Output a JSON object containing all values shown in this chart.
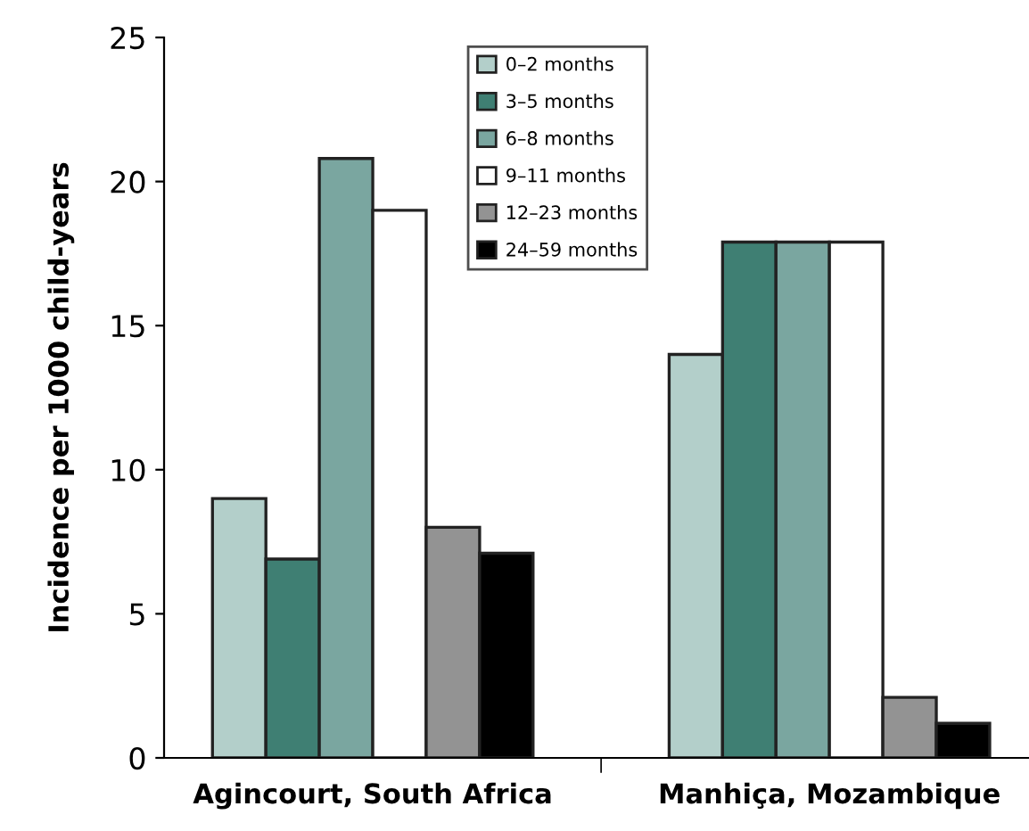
{
  "chart_data": {
    "type": "bar",
    "ylabel": "Incidence per 1000 child-years",
    "categories": [
      "Agincourt, South Africa",
      "Manhiça, Mozambique"
    ],
    "series": [
      {
        "name": "0–2 months",
        "color": "#b3cfca",
        "values": [
          9.0,
          14.0
        ]
      },
      {
        "name": "3–5 months",
        "color": "#3f7f73",
        "values": [
          6.9,
          17.9
        ]
      },
      {
        "name": "6–8 months",
        "color": "#7aa6a0",
        "values": [
          20.8,
          17.9
        ]
      },
      {
        "name": "9–11 months",
        "color": "#ffffff",
        "values": [
          19.0,
          17.9
        ]
      },
      {
        "name": "12–23 months",
        "color": "#939393",
        "values": [
          8.0,
          2.1
        ]
      },
      {
        "name": "24–59 months",
        "color": "#000000",
        "values": [
          7.1,
          1.2
        ]
      }
    ],
    "ylim": [
      0,
      25
    ],
    "yticks": [
      0,
      5,
      10,
      15,
      20,
      25
    ],
    "grid": false,
    "legend": "top"
  }
}
